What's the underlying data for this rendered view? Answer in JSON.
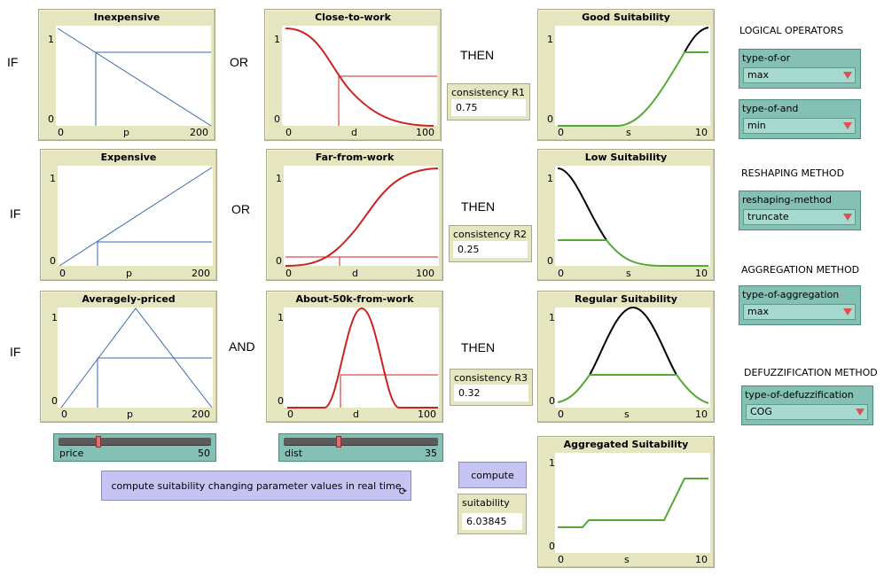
{
  "words": {
    "if1": "IF",
    "if2": "IF",
    "if3": "IF",
    "or1": "OR",
    "or2": "OR",
    "and3": "AND",
    "then1": "THEN",
    "then2": "THEN",
    "then3": "THEN"
  },
  "plots": {
    "inexpensive": {
      "title": "Inexpensive",
      "y_top": "1",
      "y_bottom": "0",
      "x_min": "0",
      "x_mid": "p",
      "x_max": "200"
    },
    "close_to_work": {
      "title": "Close-to-work",
      "y_top": "1",
      "y_bottom": "0",
      "x_min": "0",
      "x_mid": "d",
      "x_max": "100"
    },
    "good_suit": {
      "title": "Good Suitability",
      "y_top": "1",
      "y_bottom": "0",
      "x_min": "0",
      "x_mid": "s",
      "x_max": "10"
    },
    "expensive": {
      "title": "Expensive",
      "y_top": "1",
      "y_bottom": "0",
      "x_min": "0",
      "x_mid": "p",
      "x_max": "200"
    },
    "far_from_work": {
      "title": "Far-from-work",
      "y_top": "1",
      "y_bottom": "0",
      "x_min": "0",
      "x_mid": "d",
      "x_max": "100"
    },
    "low_suit": {
      "title": "Low Suitability",
      "y_top": "1",
      "y_bottom": "0",
      "x_min": "0",
      "x_mid": "s",
      "x_max": "10"
    },
    "avg_priced": {
      "title": "Averagely-priced",
      "y_top": "1",
      "y_bottom": "0",
      "x_min": "0",
      "x_mid": "p",
      "x_max": "200"
    },
    "about_50k": {
      "title": "About-50k-from-work",
      "y_top": "1",
      "y_bottom": "0",
      "x_min": "0",
      "x_mid": "d",
      "x_max": "100"
    },
    "regular_suit": {
      "title": "Regular Suitability",
      "y_top": "1",
      "y_bottom": "0",
      "x_min": "0",
      "x_mid": "s",
      "x_max": "10"
    },
    "aggregated": {
      "title": "Aggregated Suitability",
      "y_top": "1",
      "y_bottom": "0",
      "x_min": "0",
      "x_mid": "s",
      "x_max": "10"
    }
  },
  "monitors": {
    "r1": {
      "label": "consistency R1",
      "value": "0.75"
    },
    "r2": {
      "label": "consistency R2",
      "value": "0.25"
    },
    "r3": {
      "label": "consistency R3",
      "value": "0.32"
    },
    "suitability": {
      "label": "suitability",
      "value": "6.03845"
    }
  },
  "sections": {
    "logical": "LOGICAL OPERATORS",
    "reshaping": "RESHAPING METHOD",
    "aggregation": "AGGREGATION METHOD",
    "defuzz": "DEFUZZIFICATION METHOD"
  },
  "choosers": {
    "type_of_or": {
      "label": "type-of-or",
      "value": "max"
    },
    "type_of_and": {
      "label": "type-of-and",
      "value": "min"
    },
    "reshaping": {
      "label": "reshaping-method",
      "value": "truncate"
    },
    "aggregation": {
      "label": "type-of-aggregation",
      "value": "max"
    },
    "defuzz": {
      "label": "type-of-defuzzification",
      "value": "COG"
    }
  },
  "sliders": {
    "price": {
      "name": "price",
      "value": "50",
      "fraction": 0.25
    },
    "dist": {
      "name": "dist",
      "value": "35",
      "fraction": 0.35
    }
  },
  "buttons": {
    "compute_realtime": "compute suitability changing parameter values in real time",
    "compute": "compute"
  },
  "colors": {
    "blue": "#3a6ba8",
    "red": "#cc2222",
    "green": "#55aa33",
    "black": "#000000"
  }
}
